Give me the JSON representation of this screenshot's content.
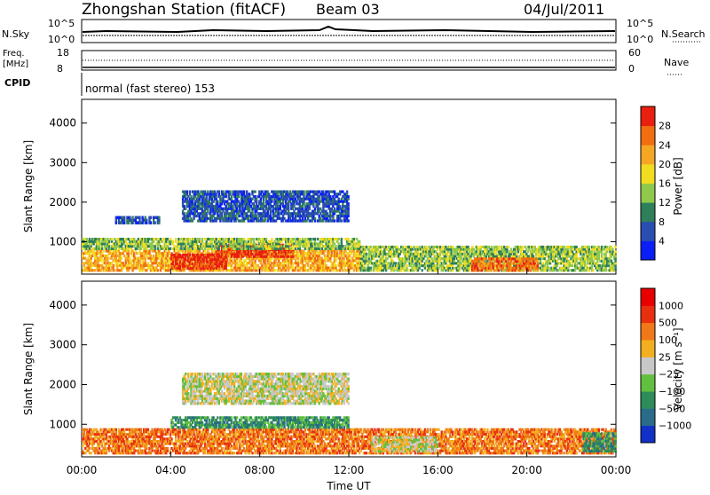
{
  "header": {
    "station": "Zhongshan Station (fitACF)",
    "beam": "Beam 03",
    "date": "04/Jul/2011"
  },
  "panels": {
    "nsky_label": "N.Sky",
    "nsky_ticks": [
      "10^5",
      "10^0"
    ],
    "nsearch_label": "N.Search",
    "nsearch_ticks": [
      "10^5",
      "10^0"
    ],
    "freq_label": "Freq.",
    "freq_unit": "[MHz]",
    "freq_ticks": [
      "18",
      "8"
    ],
    "nave_label": "Nave",
    "nave_ticks": [
      "60",
      "0"
    ],
    "cpid_label": "CPID",
    "cpid_text": "normal (fast stereo) 153"
  },
  "chart_data": [
    {
      "type": "heatmap",
      "name": "power",
      "ylabel": "Slant Range [km]",
      "yticks": [
        1000,
        2000,
        3000,
        4000
      ],
      "ylim": [
        180,
        4600
      ],
      "xlim": [
        0,
        24
      ],
      "colorbar_label": "Power [dB]",
      "colorbar_ticks": [
        "28",
        "24",
        "20",
        "16",
        "12",
        "8",
        "4"
      ],
      "colors": [
        "#0a1ff5",
        "#2a4db0",
        "#2f7f5a",
        "#8fc84a",
        "#f2dc20",
        "#f5a623",
        "#f06e10",
        "#e82010"
      ],
      "bands": [
        {
          "t0": 0.0,
          "t1": 12.5,
          "r0": 250,
          "r1": 800,
          "level": 5
        },
        {
          "t0": 4.0,
          "t1": 6.5,
          "r0": 300,
          "r1": 700,
          "level": 7
        },
        {
          "t0": 6.0,
          "t1": 9.5,
          "r0": 600,
          "r1": 950,
          "level": 7
        },
        {
          "t0": 0.0,
          "t1": 12.5,
          "r0": 800,
          "r1": 1100,
          "level": 3
        },
        {
          "t0": 1.5,
          "t1": 3.5,
          "r0": 1450,
          "r1": 1650,
          "level": 1
        },
        {
          "t0": 4.5,
          "t1": 12.0,
          "r0": 1500,
          "r1": 2300,
          "level": 1
        },
        {
          "t0": 12.5,
          "t1": 24.0,
          "r0": 250,
          "r1": 900,
          "level": 3
        },
        {
          "t0": 17.5,
          "t1": 20.5,
          "r0": 250,
          "r1": 600,
          "level": 6
        }
      ]
    },
    {
      "type": "heatmap",
      "name": "velocity",
      "ylabel": "Slant Range [km]",
      "yticks": [
        1000,
        2000,
        3000,
        4000
      ],
      "ylim": [
        180,
        4600
      ],
      "xlim": [
        0,
        24
      ],
      "xticks": [
        "00:00",
        "04:00",
        "08:00",
        "12:00",
        "16:00",
        "20:00",
        "00:00"
      ],
      "xlabel": "Time UT",
      "colorbar_label": "Velocity [m s⁻¹]",
      "colorbar_ticks": [
        "1000",
        "500",
        "100",
        "25",
        "−25",
        "−100",
        "−500",
        "−1000"
      ],
      "colors": [
        "#1030c8",
        "#2a6b8a",
        "#2e8c5a",
        "#62c040",
        "#c8c8c8",
        "#f2b020",
        "#f07818",
        "#e83010",
        "#e80000"
      ],
      "bands": [
        {
          "t0": 0.0,
          "t1": 12.5,
          "r0": 250,
          "r1": 900,
          "level": 6
        },
        {
          "t0": 4.0,
          "t1": 12.0,
          "r0": 900,
          "r1": 1200,
          "level": 2
        },
        {
          "t0": 4.5,
          "t1": 12.0,
          "r0": 1500,
          "r1": 2300,
          "level": 4
        },
        {
          "t0": 12.5,
          "t1": 24.0,
          "r0": 250,
          "r1": 900,
          "level": 6
        },
        {
          "t0": 13.0,
          "t1": 16.0,
          "r0": 300,
          "r1": 700,
          "level": 4
        },
        {
          "t0": 22.5,
          "t1": 24.0,
          "r0": 300,
          "r1": 800,
          "level": 2
        }
      ]
    }
  ]
}
